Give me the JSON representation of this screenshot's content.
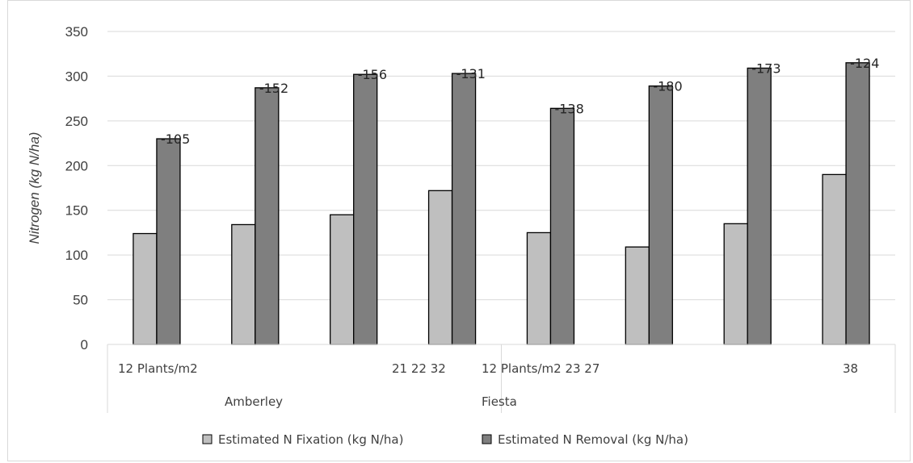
{
  "chart_data": {
    "type": "bar",
    "title": "",
    "ylabel": "Nitrogen (kg N/ha)",
    "xlabel": "",
    "ylim": [
      0,
      350
    ],
    "yticks": [
      0,
      50,
      100,
      150,
      200,
      250,
      300,
      350
    ],
    "grid": true,
    "legend_position": "bottom",
    "category_labels": [
      "12 Plants/m2",
      "",
      "",
      "21 22 32",
      "12 Plants/m2 23 27",
      "",
      "",
      "38"
    ],
    "groups": [
      {
        "label": "Amberley"
      },
      {
        "label": "Fiesta"
      }
    ],
    "series": [
      {
        "name": "Estimated N Fixation (kg N/ha)",
        "color": "#bfbfbf",
        "values": [
          124,
          134,
          145,
          172,
          125,
          109,
          135,
          190
        ]
      },
      {
        "name": "Estimated N Removal (kg N/ha)",
        "color": "#7f7f7f",
        "values": [
          230,
          287,
          302,
          303,
          264,
          289,
          309,
          315
        ],
        "data_labels": [
          "-105",
          "-152",
          "-156",
          "-131",
          "-138",
          "-180",
          "-173",
          "-124"
        ]
      }
    ]
  }
}
